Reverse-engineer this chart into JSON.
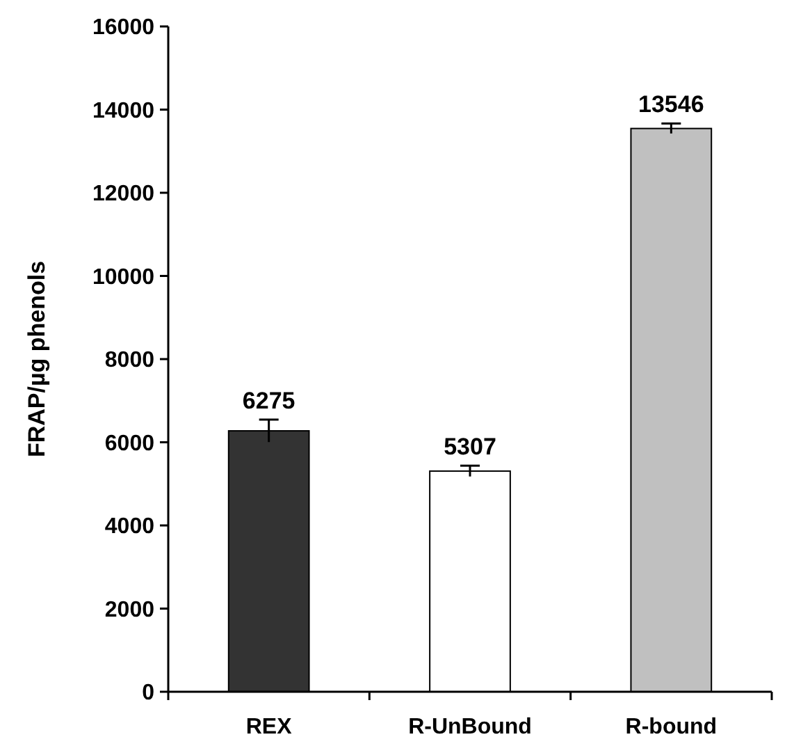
{
  "chart_data": {
    "type": "bar",
    "ylabel": "FRAP/µg phenols",
    "categories": [
      "REX",
      "R-UnBound",
      "R-bound"
    ],
    "values": [
      6275,
      5307,
      13546
    ],
    "colors": [
      "#333333",
      "#ffffff",
      "#c0c0c0"
    ],
    "errors": [
      270,
      130,
      120
    ],
    "data_labels": true,
    "ylim": [
      0,
      16000
    ],
    "yticks": [
      0,
      2000,
      4000,
      6000,
      8000,
      10000,
      12000,
      14000,
      16000
    ],
    "grid": false
  }
}
